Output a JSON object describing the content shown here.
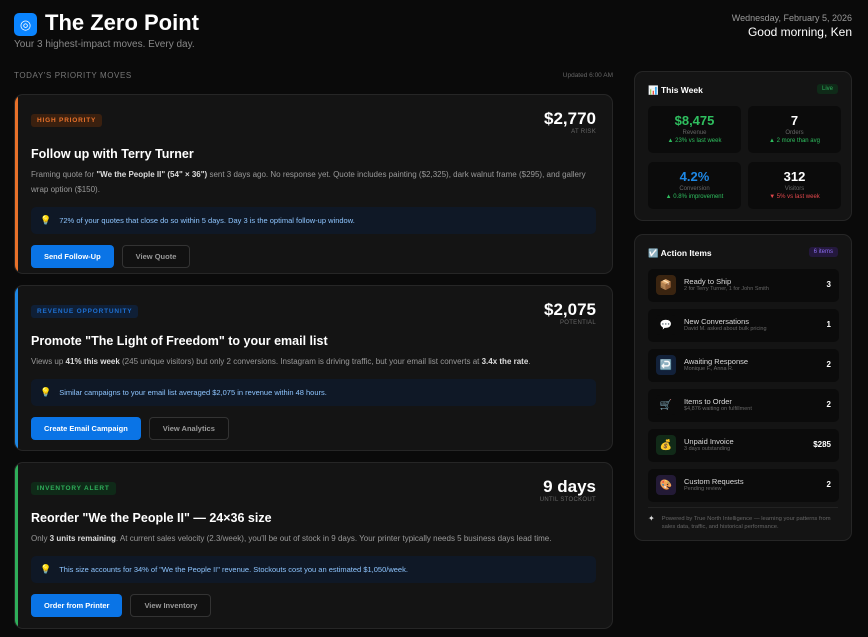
{
  "header": {
    "logo_icon": "target-icon",
    "title": "The Zero Point",
    "subtitle": "Your 3 highest-impact moves. Every day.",
    "date": "Wednesday, February 5, 2026",
    "greeting": "Good morning, Ken"
  },
  "section": {
    "label": "TODAY'S PRIORITY MOVES",
    "updated": "Updated 6:00 AM"
  },
  "cards": [
    {
      "badge": "HIGH PRIORITY",
      "accent": "#e8712a",
      "amount": "$2,770",
      "amount_label": "AT RISK",
      "title": "Follow up with Terry Turner",
      "desc": [
        "Framing quote for ",
        "\"We the People II\" (54\" × 36\")",
        " sent 3 days ago. No response yet. Quote includes painting ($2,325), dark walnut frame ($295), and gallery wrap option ($150).",
        "",
        ""
      ],
      "tip": "72% of your quotes that close do so within 5 days. Day 3 is the optimal follow-up window.",
      "primary": "Send Follow-Up",
      "secondary": "View Quote"
    },
    {
      "badge": "REVENUE OPPORTUNITY",
      "accent": "#1e88e5",
      "amount": "$2,075",
      "amount_label": "POTENTIAL",
      "title": "Promote \"The Light of Freedom\" to your email list",
      "desc": [
        "Views up ",
        "41% this week",
        " (245 unique visitors) but only 2 conversions. Instagram is driving traffic, but your email list converts at ",
        "3.4x the rate",
        "."
      ],
      "tip": "Similar campaigns to your email list averaged $2,075 in revenue within 48 hours.",
      "primary": "Create Email Campaign",
      "secondary": "View Analytics"
    },
    {
      "badge": "INVENTORY ALERT",
      "accent": "#2fae5a",
      "amount": "9 days",
      "amount_label": "UNTIL STOCKOUT",
      "title": "Reorder \"We the People II\" — 24×36 size",
      "desc": [
        "Only ",
        "3 units remaining",
        ". At current sales velocity (2.3/week), you'll be out of stock in 9 days. Your printer typically needs 5 business days lead time.",
        "",
        ""
      ],
      "tip": "This size accounts for 34% of \"We the People II\" revenue. Stockouts cost you an estimated $1,050/week.",
      "primary": "Order from Printer",
      "secondary": "View Inventory"
    }
  ],
  "this_week": {
    "title": "📊 This Week",
    "badge": "Live",
    "stats": [
      {
        "value": "$8,475",
        "label": "Revenue",
        "delta": "▲ 23% vs last week",
        "color": "#2fbf5f",
        "delta_color": "#2fbf5f"
      },
      {
        "value": "7",
        "label": "Orders",
        "delta": "▲ 2 more than avg",
        "color": "#ffffff",
        "delta_color": "#2fbf5f"
      },
      {
        "value": "4.2%",
        "label": "Conversion",
        "delta": "▲ 0.8% improvement",
        "color": "#1e88e5",
        "delta_color": "#2fbf5f"
      },
      {
        "value": "312",
        "label": "Visitors",
        "delta": "▼ 5% vs last week",
        "color": "#ffffff",
        "delta_color": "#e5484d"
      }
    ]
  },
  "action_items": {
    "title": "☑️ Action Items",
    "badge": "6 items",
    "items": [
      {
        "icon": "📦",
        "icon_name": "package-icon",
        "title": "Ready to Ship",
        "sub": "2 for Terry Turner, 1 for John Smith",
        "count": "3",
        "bg": "#3a2410"
      },
      {
        "icon": "💬",
        "icon_name": "chat-bubble-icon",
        "title": "New Conversations",
        "sub": "David M. asked about bulk pricing",
        "count": "1",
        "bg": "#0b0b0b"
      },
      {
        "icon": "↩️",
        "icon_name": "reply-arrow-icon",
        "title": "Awaiting Response",
        "sub": "Monique F., Anna R.",
        "count": "2",
        "bg": "#12213a"
      },
      {
        "icon": "🛒",
        "icon_name": "shopping-cart-icon",
        "title": "Items to Order",
        "sub": "$4,876 waiting on fulfillment",
        "count": "2",
        "bg": "#0b0b0b"
      },
      {
        "icon": "💰",
        "icon_name": "money-bag-icon",
        "title": "Unpaid Invoice",
        "sub": "3 days outstanding",
        "count": "$285",
        "bg": "#112a18"
      },
      {
        "icon": "🎨",
        "icon_name": "palette-icon",
        "title": "Custom Requests",
        "sub": "Pending review",
        "count": "2",
        "bg": "#231a36"
      }
    ],
    "footer_icon": "✦",
    "footer": "Powered by True North Intelligence — learning your patterns from sales data, traffic, and historical performance."
  }
}
